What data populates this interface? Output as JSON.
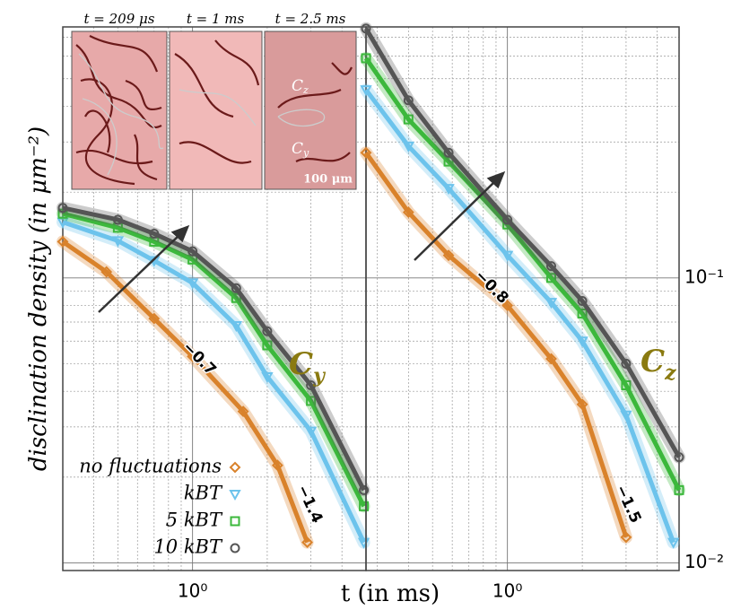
{
  "chart_data": [
    {
      "type": "scatter",
      "log_x": true,
      "log_y": true,
      "grid": true,
      "legend": "lower left",
      "ylabel": "disclination density (in μm⁻²)",
      "xlabel": "t (in ms)",
      "xlim": [
        0.3,
        5
      ],
      "ylim": [
        0.0094,
        0.76
      ],
      "xticks": [
        {
          "value": 1,
          "label": "10⁰"
        }
      ],
      "xminor_ticks": [
        0.4,
        0.5,
        0.6,
        0.7,
        0.8,
        0.9,
        2,
        3,
        4
      ],
      "yticks": [
        {
          "value": 0.1,
          "label": "10⁻¹"
        },
        {
          "value": 0.01,
          "label": "10⁻²"
        }
      ],
      "yminor_ticks": [
        0.02,
        0.03,
        0.04,
        0.05,
        0.06,
        0.07,
        0.08,
        0.09,
        0.2,
        0.3,
        0.4,
        0.5,
        0.6,
        0.7
      ],
      "panel_label": {
        "text": "C",
        "sub": "y"
      },
      "annotations": [
        "−0.7",
        "−1.4"
      ],
      "inset": {
        "times": [
          "t = 209 μs",
          "t = 1 ms",
          "t = 2.5 ms"
        ],
        "labels": [
          {
            "text": "C",
            "sub": "z"
          },
          {
            "text": "C",
            "sub": "y"
          }
        ],
        "scale": "100 μm"
      },
      "series": [
        {
          "name": "no fluctuations",
          "color": "#d9822b",
          "marker": "diamond",
          "x": [
            0.3,
            0.45,
            0.7,
            1,
            1.6,
            2.2,
            2.9
          ],
          "values": [
            0.134,
            0.105,
            0.072,
            0.053,
            0.034,
            0.022,
            0.0118
          ]
        },
        {
          "name": "kBT",
          "color": "#6cc3ec",
          "marker": "triangle",
          "x": [
            0.3,
            0.5,
            0.7,
            1,
            1.5,
            2,
            3,
            4.9
          ],
          "values": [
            0.157,
            0.135,
            0.115,
            0.096,
            0.068,
            0.045,
            0.029,
            0.0118
          ]
        },
        {
          "name": "5 kBT",
          "color": "#3cb83c",
          "marker": "square",
          "x": [
            0.3,
            0.5,
            0.7,
            1,
            1.5,
            2,
            3,
            4.9
          ],
          "values": [
            0.168,
            0.15,
            0.134,
            0.116,
            0.085,
            0.058,
            0.037,
            0.0158
          ]
        },
        {
          "name": "10 kBT",
          "color": "#555555",
          "marker": "circle",
          "x": [
            0.3,
            0.5,
            0.7,
            1,
            1.5,
            2,
            3,
            4.9
          ],
          "values": [
            0.176,
            0.16,
            0.143,
            0.124,
            0.092,
            0.065,
            0.042,
            0.018
          ]
        }
      ]
    },
    {
      "type": "scatter",
      "log_x": true,
      "log_y": true,
      "grid": true,
      "xlim": [
        0.27,
        4.9
      ],
      "ylim": [
        0.0094,
        0.76
      ],
      "xticks": [
        {
          "value": 1,
          "label": "10⁰"
        }
      ],
      "xminor_ticks": [
        0.3,
        0.4,
        0.5,
        0.6,
        0.7,
        0.8,
        0.9,
        2,
        3,
        4
      ],
      "panel_label": {
        "text": "C",
        "sub": "z"
      },
      "annotations": [
        "−0.8",
        "−1.5"
      ],
      "series": [
        {
          "color": "#d9822b",
          "marker": "diamond",
          "x": [
            0.27,
            0.4,
            0.58,
            1,
            1.5,
            2,
            3
          ],
          "values": [
            0.275,
            0.17,
            0.12,
            0.08,
            0.052,
            0.036,
            0.0123
          ]
        },
        {
          "color": "#6cc3ec",
          "marker": "triangle",
          "x": [
            0.27,
            0.4,
            0.58,
            1,
            1.5,
            2,
            3,
            4.65
          ],
          "values": [
            0.457,
            0.29,
            0.206,
            0.12,
            0.082,
            0.06,
            0.033,
            0.0118
          ]
        },
        {
          "color": "#3cb83c",
          "marker": "square",
          "x": [
            0.27,
            0.4,
            0.58,
            1,
            1.5,
            2,
            3,
            4.9
          ],
          "values": [
            0.59,
            0.36,
            0.256,
            0.154,
            0.1,
            0.075,
            0.042,
            0.018
          ]
        },
        {
          "color": "#555555",
          "marker": "circle",
          "x": [
            0.27,
            0.4,
            0.58,
            1,
            1.5,
            2,
            3,
            4.9
          ],
          "values": [
            0.75,
            0.42,
            0.275,
            0.16,
            0.11,
            0.083,
            0.05,
            0.0235
          ]
        }
      ]
    }
  ]
}
